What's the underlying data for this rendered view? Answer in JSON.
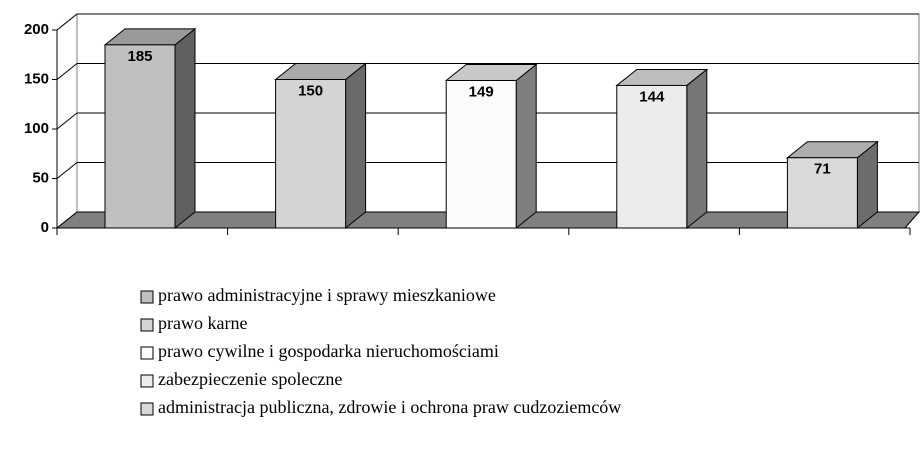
{
  "chart_data": {
    "type": "bar",
    "series": [
      {
        "name": "prawo administracyjne i sprawy mieszkaniowe",
        "color": "#c0c0c0",
        "values": [
          185
        ]
      },
      {
        "name": "prawo karne",
        "color": "#d4d4d4",
        "values": [
          150
        ]
      },
      {
        "name": "prawo cywilne i gospodarka nieruchomościami",
        "color": "#fbfbfb",
        "values": [
          149
        ]
      },
      {
        "name": "zabezpieczenie spoleczne",
        "color": "#ececec",
        "values": [
          144
        ]
      },
      {
        "name": "administracja publiczna, zdrowie i ochrona praw cudzoziemców",
        "color": "#d9d9d9",
        "values": [
          71
        ]
      }
    ],
    "ylim": [
      0,
      200
    ],
    "yticks": [
      0,
      50,
      100,
      150,
      200
    ],
    "grid": true
  }
}
